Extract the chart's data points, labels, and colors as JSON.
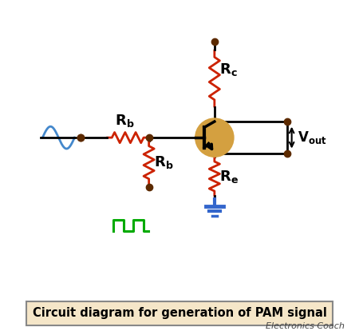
{
  "title": "Circuit diagram for generation of PAM signal",
  "subtitle": "Electronics Coach",
  "title_bg": "#f5e6c8",
  "title_border": "#888888",
  "wire_color": "#000000",
  "resistor_color_red": "#cc2200",
  "resistor_color_green": "#00aa00",
  "sine_color": "#4488cc",
  "pulse_color": "#00aa00",
  "transistor_color": "#d4a040",
  "ground_color": "#3366cc",
  "dot_color": "#5c2a00",
  "vout_color": "#000000",
  "label_Rc": "R_c",
  "label_Rb_top": "R_b",
  "label_Rb_bot": "R_b",
  "label_Re": "R_e",
  "label_Vout": "V_{out}",
  "figsize": [
    4.5,
    4.19
  ],
  "dpi": 100
}
